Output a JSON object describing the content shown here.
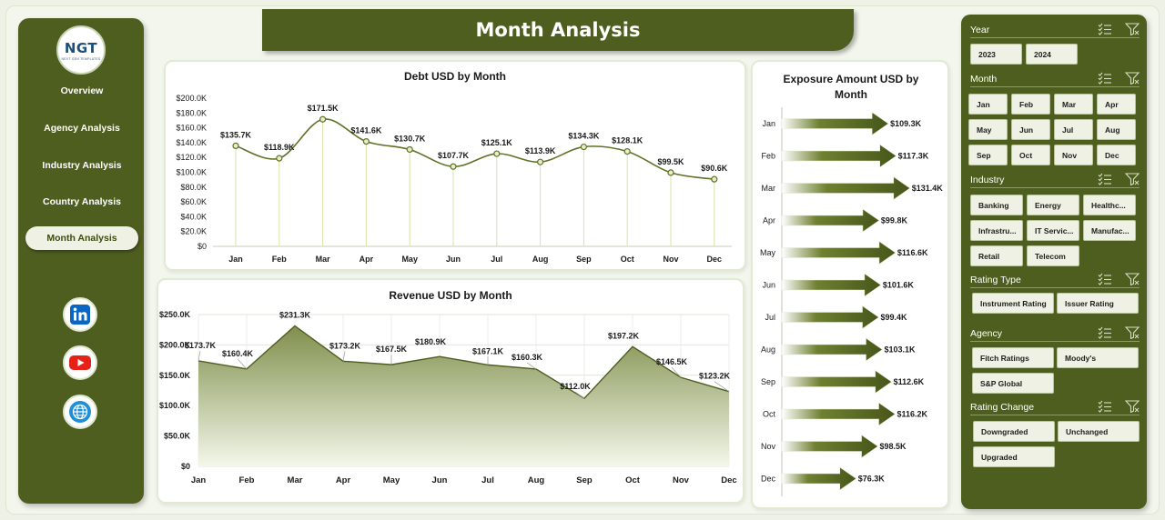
{
  "header": {
    "title": "Month Analysis"
  },
  "logo": {
    "text": "NGT",
    "subtitle": "NEXT GEN TEMPLATES"
  },
  "nav": {
    "items": [
      {
        "label": "Overview",
        "active": false
      },
      {
        "label": "Agency Analysis",
        "active": false
      },
      {
        "label": "Industry Analysis",
        "active": false
      },
      {
        "label": "Country Analysis",
        "active": false
      },
      {
        "label": "Month Analysis",
        "active": true
      }
    ],
    "social": [
      "linkedin-icon",
      "youtube-icon",
      "globe-icon"
    ]
  },
  "colors": {
    "primary": "#4e5e1f",
    "series": "#5f7227",
    "fill_top": "#7f8f4c",
    "fill_bottom": "#f4f7ea",
    "chip": "#eef1e3"
  },
  "chart_data": [
    {
      "type": "line",
      "title": "Debt USD by Month",
      "categories": [
        "Jan",
        "Feb",
        "Mar",
        "Apr",
        "May",
        "Jun",
        "Jul",
        "Aug",
        "Sep",
        "Oct",
        "Nov",
        "Dec"
      ],
      "values": [
        135.7,
        118.9,
        171.5,
        141.6,
        130.7,
        107.7,
        125.1,
        113.9,
        134.3,
        128.1,
        99.5,
        90.6
      ],
      "labels": [
        "$135.7K",
        "$118.9K",
        "$171.5K",
        "$141.6K",
        "$130.7K",
        "$107.7K",
        "$125.1K",
        "$113.9K",
        "$134.3K",
        "$128.1K",
        "$99.5K",
        "$90.6K"
      ],
      "ylim": [
        0,
        200
      ],
      "yticks": [
        "$0",
        "$20.0K",
        "$40.0K",
        "$60.0K",
        "$80.0K",
        "$100.0K",
        "$120.0K",
        "$140.0K",
        "$160.0K",
        "$180.0K",
        "$200.0K"
      ],
      "grid": false
    },
    {
      "type": "area",
      "title": "Revenue USD by Month",
      "categories": [
        "Jan",
        "Feb",
        "Mar",
        "Apr",
        "May",
        "Jun",
        "Jul",
        "Aug",
        "Sep",
        "Oct",
        "Nov",
        "Dec"
      ],
      "values": [
        173.7,
        160.4,
        231.3,
        173.2,
        167.5,
        180.9,
        167.1,
        160.3,
        112.0,
        197.2,
        146.5,
        123.2
      ],
      "labels": [
        "$173.7K",
        "$160.4K",
        "$231.3K",
        "$173.2K",
        "$167.5K",
        "$180.9K",
        "$167.1K",
        "$160.3K",
        "$112.0K",
        "$197.2K",
        "$146.5K",
        "$123.2K"
      ],
      "ylim": [
        0,
        250
      ],
      "yticks": [
        "$0",
        "$50.0K",
        "$100.0K",
        "$150.0K",
        "$200.0K",
        "$250.0K"
      ],
      "grid": true
    },
    {
      "type": "bar",
      "orientation": "horizontal",
      "title": "Exposure Amount USD by Month",
      "categories": [
        "Jan",
        "Feb",
        "Mar",
        "Apr",
        "May",
        "Jun",
        "Jul",
        "Aug",
        "Sep",
        "Oct",
        "Nov",
        "Dec"
      ],
      "values": [
        109.3,
        117.3,
        131.4,
        99.8,
        116.6,
        101.6,
        99.4,
        103.1,
        112.6,
        116.2,
        98.5,
        76.3
      ],
      "labels": [
        "$109.3K",
        "$117.3K",
        "$131.4K",
        "$99.8K",
        "$116.6K",
        "$101.6K",
        "$99.4K",
        "$103.1K",
        "$112.6K",
        "$116.2K",
        "$98.5K",
        "$76.3K"
      ],
      "xlim": [
        0,
        140
      ]
    }
  ],
  "slicers": [
    {
      "title": "Year",
      "items": [
        "2023",
        "2024"
      ]
    },
    {
      "title": "Month",
      "items": [
        "Jan",
        "Feb",
        "Mar",
        "Apr",
        "May",
        "Jun",
        "Jul",
        "Aug",
        "Sep",
        "Oct",
        "Nov",
        "Dec"
      ]
    },
    {
      "title": "Industry",
      "items": [
        "Banking",
        "Energy",
        "Healthc...",
        "Infrastru...",
        "IT Servic...",
        "Manufac...",
        "Retail",
        "Telecom"
      ]
    },
    {
      "title": "Rating Type",
      "items": [
        "Instrument Rating",
        "Issuer Rating"
      ]
    },
    {
      "title": "Agency",
      "items": [
        "Fitch Ratings",
        "Moody's",
        "S&P Global"
      ]
    },
    {
      "title": "Rating Change",
      "items": [
        "Downgraded",
        "Unchanged",
        "Upgraded"
      ]
    }
  ],
  "slicer_icons": [
    "multi-select-icon",
    "clear-filter-icon"
  ]
}
